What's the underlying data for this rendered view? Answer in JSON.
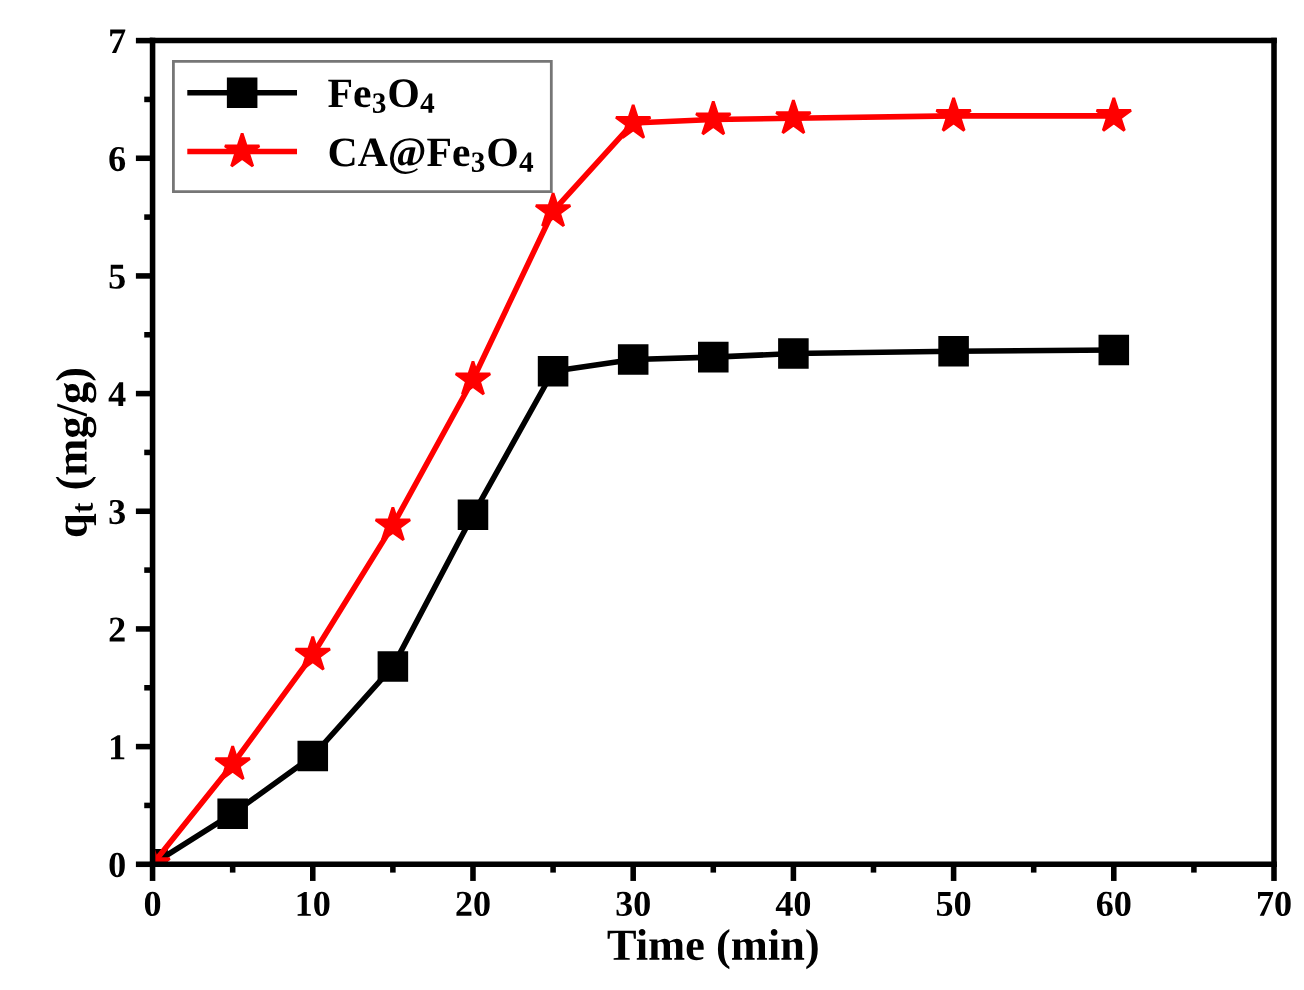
{
  "chart_data": {
    "type": "line",
    "xlabel": "Time (min)",
    "ylabel": "q$_{t}$ (mg/g)",
    "x": [
      0,
      5,
      10,
      15,
      20,
      25,
      30,
      35,
      40,
      50,
      60
    ],
    "series": [
      {
        "name": "Fe$_{3}$O$_{4}$",
        "color": "#000000",
        "marker": "square",
        "values": [
          0,
          0.43,
          0.92,
          1.68,
          2.97,
          4.19,
          4.29,
          4.31,
          4.34,
          4.36,
          4.37
        ]
      },
      {
        "name": "CA@Fe$_{3}$O$_{4}$",
        "color": "#ff0000",
        "marker": "star",
        "values": [
          0,
          0.85,
          1.78,
          2.88,
          4.12,
          5.55,
          6.3,
          6.33,
          6.34,
          6.36,
          6.36
        ]
      }
    ],
    "xlim": [
      0,
      70
    ],
    "ylim": [
      0,
      7
    ],
    "xticks": [
      0,
      10,
      20,
      30,
      40,
      50,
      60,
      70
    ],
    "yticks": [
      0,
      1,
      2,
      3,
      4,
      5,
      6,
      7
    ],
    "grid": false,
    "legend": "top left",
    "line_style": "solid"
  }
}
